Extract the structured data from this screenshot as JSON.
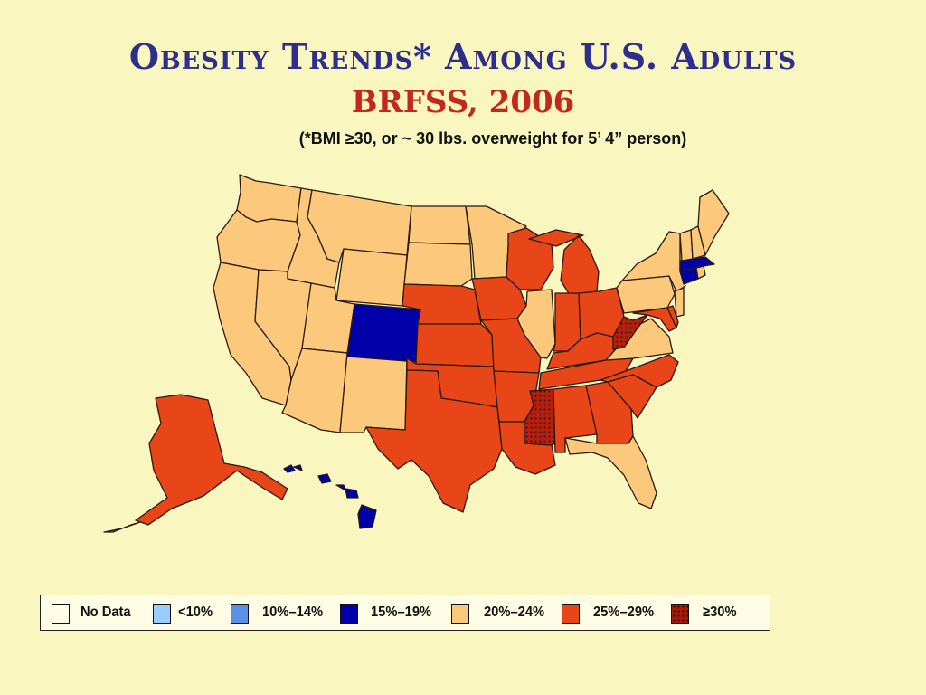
{
  "title": "Obesity Trends* Among U.S. Adults",
  "subtitle": "BRFSS, 2006",
  "note": "(*BMI ≥30, or ~ 30 lbs. overweight for 5’ 4” person)",
  "colors": {
    "no_data": "#fffde6",
    "lt10": "#99ccff",
    "c10_14": "#5b8fe8",
    "c15_19": "#0000a8",
    "c20_24": "#fcc97c",
    "c25_29": "#e84618",
    "ge30": "#a81a0a"
  },
  "legend": [
    {
      "label": "No Data",
      "color_key": "no_data"
    },
    {
      "label": "<10%",
      "color_key": "lt10"
    },
    {
      "label": "10%–14%",
      "color_key": "c10_14"
    },
    {
      "label": "15%–19%",
      "color_key": "c15_19"
    },
    {
      "label": "20%–24%",
      "color_key": "c20_24"
    },
    {
      "label": "25%–29%",
      "color_key": "c25_29"
    },
    {
      "label": "≥30%",
      "color_key": "ge30"
    }
  ],
  "states": {
    "WA": "20%–24%",
    "OR": "20%–24%",
    "CA": "20%–24%",
    "ID": "20%–24%",
    "NV": "20%–24%",
    "MT": "20%–24%",
    "WY": "20%–24%",
    "UT": "20%–24%",
    "AZ": "20%–24%",
    "NM": "20%–24%",
    "CO": "15%–19%",
    "ND": "20%–24%",
    "SD": "20%–24%",
    "NE": "25%–29%",
    "KS": "25%–29%",
    "OK": "25%–29%",
    "TX": "25%–29%",
    "MN": "20%–24%",
    "IA": "25%–29%",
    "MO": "25%–29%",
    "AR": "25%–29%",
    "LA": "25%–29%",
    "WI": "25%–29%",
    "IL": "20%–24%",
    "MI": "25%–29%",
    "IN": "25%–29%",
    "OH": "25%–29%",
    "KY": "25%–29%",
    "TN": "25%–29%",
    "MS": "≥30%",
    "AL": "25%–29%",
    "GA": "25%–29%",
    "FL": "20%–24%",
    "SC": "25%–29%",
    "NC": "25%–29%",
    "VA": "20%–24%",
    "WV": "≥30%",
    "PA": "20%–24%",
    "NY": "20%–24%",
    "MD": "25%–29%",
    "DE": "25%–29%",
    "NJ": "20%–24%",
    "CT": "15%–19%",
    "RI": "20%–24%",
    "MA": "15%–19%",
    "VT": "20%–24%",
    "NH": "20%–24%",
    "ME": "20%–24%",
    "AK": "25%–29%",
    "HI": "15%–19%"
  }
}
